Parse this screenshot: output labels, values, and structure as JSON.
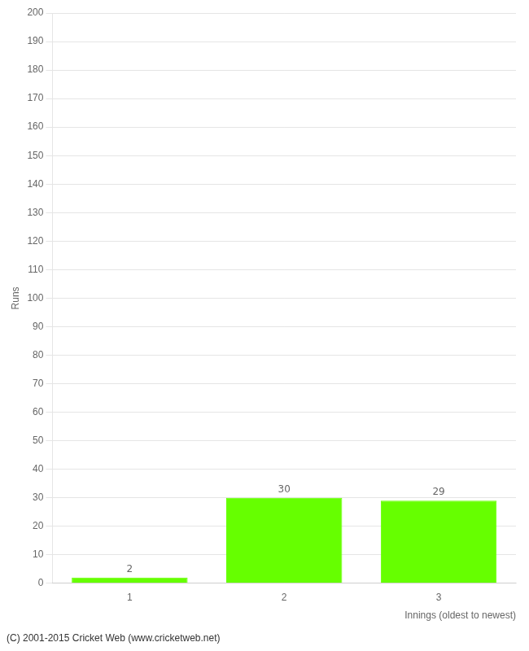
{
  "chart_data": {
    "type": "bar",
    "categories": [
      1,
      2,
      3
    ],
    "values": [
      2,
      30,
      29
    ],
    "color": "#66ff00",
    "ylabel": "Runs",
    "xlabel": "Innings (oldest to newest)",
    "ylim": [
      0,
      200
    ],
    "yticks": [
      0,
      10,
      20,
      30,
      40,
      50,
      60,
      70,
      80,
      90,
      100,
      110,
      120,
      130,
      140,
      150,
      160,
      170,
      180,
      190,
      200
    ],
    "grid": true,
    "data_labels": true,
    "annotations": [
      "(C) 2001-2015 Cricket Web (www.cricketweb.net)"
    ]
  }
}
